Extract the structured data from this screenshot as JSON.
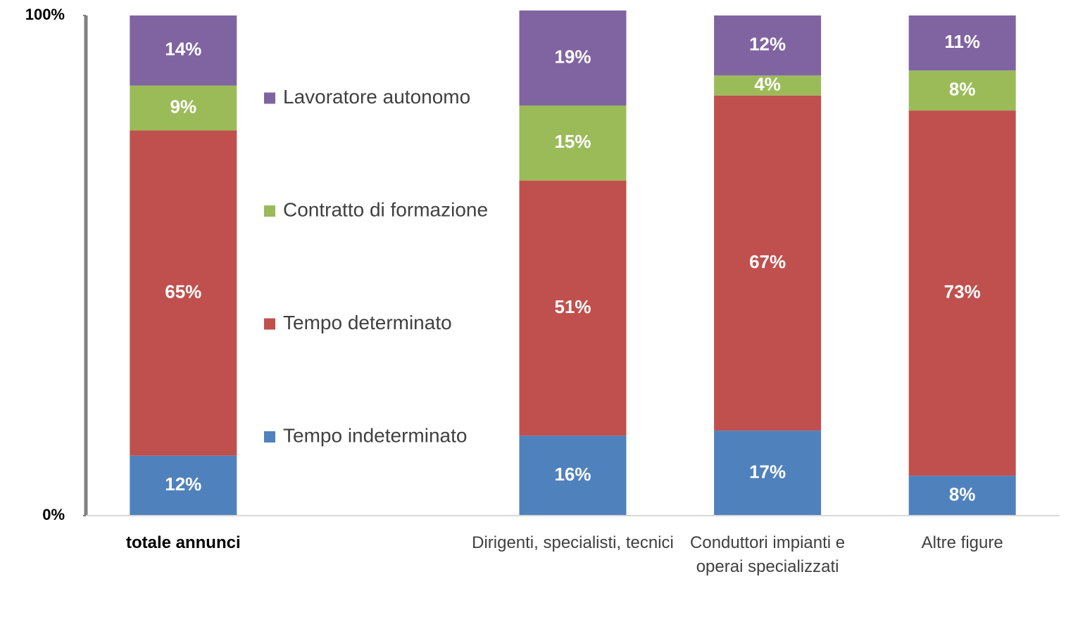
{
  "chart_data": {
    "type": "stacked_bar",
    "categories": [
      "totale annunci",
      null,
      "Dirigenti, specialisti, tecnici",
      "Conduttori impianti e operai specializzati",
      "Altre figure"
    ],
    "series": [
      {
        "name": "Tempo indeterminato",
        "color": "#4f81bd",
        "values": [
          12,
          null,
          16,
          17,
          8
        ],
        "value_labels": [
          "12%",
          null,
          "16%",
          "17%",
          "8%"
        ]
      },
      {
        "name": "Tempo determinato",
        "color": "#c0504d",
        "values": [
          65,
          null,
          51,
          67,
          73
        ],
        "value_labels": [
          "65%",
          null,
          "51%",
          "67%",
          "73%"
        ]
      },
      {
        "name": "Contratto di formazione",
        "color": "#9bbb59",
        "values": [
          9,
          null,
          15,
          4,
          8
        ],
        "value_labels": [
          "9%",
          null,
          "15%",
          "4%",
          "8%"
        ]
      },
      {
        "name": "Lavoratore autonomo",
        "color": "#8064a2",
        "values": [
          14,
          null,
          19,
          12,
          11
        ],
        "value_labels": [
          "14%",
          null,
          "19%",
          "12%",
          "11%"
        ]
      }
    ],
    "ylim": [
      0,
      100
    ],
    "yticks": [
      {
        "value": 0,
        "label": "0%"
      },
      {
        "value": 100,
        "label": "100%"
      }
    ]
  }
}
